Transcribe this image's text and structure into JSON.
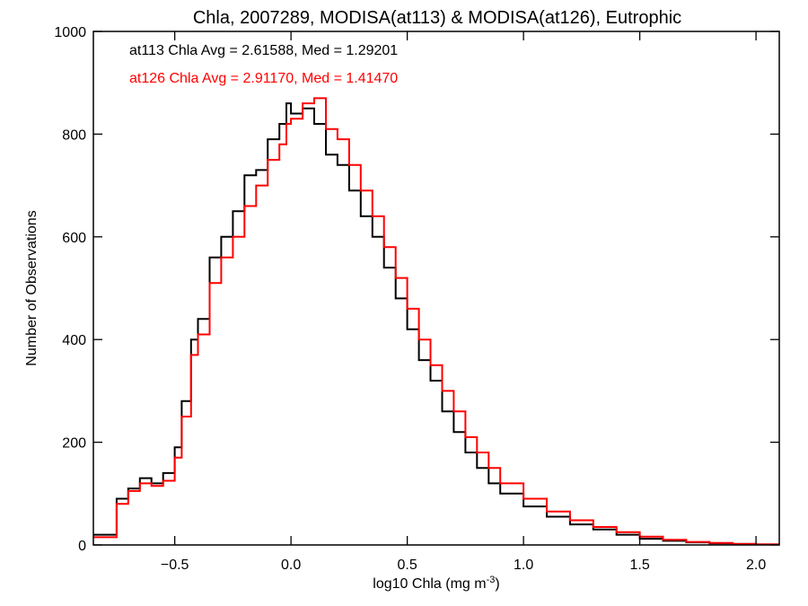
{
  "chart_data": {
    "type": "histogram-step",
    "title": "Chla, 2007289, MODISA(at113) & MODISA(at126), Eutrophic",
    "xlabel": "log10 Chla (mg m",
    "xlabel_sup": "-3",
    "xlabel_close": ")",
    "ylabel": "Number of Observations",
    "xlim": [
      -0.85,
      2.1
    ],
    "ylim": [
      0,
      1000
    ],
    "x_ticks": [
      -0.5,
      0.0,
      0.5,
      1.0,
      1.5,
      2.0
    ],
    "x_tick_labels": [
      "−0.5",
      "0.0",
      "0.5",
      "1.0",
      "1.5",
      "2.0"
    ],
    "y_ticks": [
      0,
      200,
      400,
      600,
      800,
      1000
    ],
    "y_tick_labels": [
      "0",
      "200",
      "400",
      "600",
      "800",
      "1000"
    ],
    "annotations": [
      {
        "text": "at113 Chla Avg = 2.61588, Med = 1.29201",
        "color": "#000000"
      },
      {
        "text": "at126 Chla Avg = 2.91170, Med = 1.41470",
        "color": "#ff0000"
      }
    ],
    "series": [
      {
        "color": "#000000",
        "x": [
          -0.85,
          -0.75,
          -0.7,
          -0.65,
          -0.6,
          -0.55,
          -0.5,
          -0.47,
          -0.43,
          -0.4,
          -0.35,
          -0.3,
          -0.25,
          -0.2,
          -0.15,
          -0.1,
          -0.05,
          -0.02,
          0.0,
          0.05,
          0.1,
          0.15,
          0.2,
          0.25,
          0.3,
          0.35,
          0.4,
          0.45,
          0.5,
          0.55,
          0.6,
          0.65,
          0.7,
          0.75,
          0.8,
          0.85,
          0.9,
          1.0,
          1.1,
          1.2,
          1.3,
          1.4,
          1.5,
          1.6,
          1.7,
          1.8,
          1.9,
          2.0
        ],
        "values": [
          20,
          90,
          110,
          130,
          120,
          140,
          190,
          280,
          400,
          440,
          560,
          600,
          650,
          720,
          730,
          790,
          820,
          860,
          840,
          850,
          820,
          760,
          740,
          690,
          640,
          600,
          540,
          480,
          420,
          360,
          320,
          260,
          220,
          180,
          150,
          120,
          100,
          75,
          55,
          40,
          30,
          20,
          12,
          8,
          5,
          3,
          2,
          1
        ]
      },
      {
        "color": "#ff0000",
        "x": [
          -0.85,
          -0.75,
          -0.7,
          -0.65,
          -0.6,
          -0.55,
          -0.5,
          -0.47,
          -0.43,
          -0.4,
          -0.35,
          -0.3,
          -0.25,
          -0.2,
          -0.15,
          -0.1,
          -0.05,
          -0.02,
          0.0,
          0.05,
          0.1,
          0.15,
          0.2,
          0.25,
          0.3,
          0.35,
          0.4,
          0.45,
          0.5,
          0.55,
          0.6,
          0.65,
          0.7,
          0.75,
          0.8,
          0.85,
          0.9,
          1.0,
          1.1,
          1.2,
          1.3,
          1.4,
          1.5,
          1.6,
          1.7,
          1.8,
          1.9,
          2.0
        ],
        "values": [
          15,
          80,
          105,
          120,
          115,
          125,
          170,
          250,
          370,
          410,
          510,
          560,
          600,
          660,
          700,
          750,
          780,
          820,
          830,
          860,
          870,
          810,
          790,
          740,
          690,
          640,
          580,
          520,
          460,
          400,
          350,
          300,
          260,
          210,
          180,
          150,
          120,
          90,
          65,
          48,
          35,
          25,
          16,
          10,
          6,
          4,
          2,
          1
        ]
      }
    ]
  }
}
